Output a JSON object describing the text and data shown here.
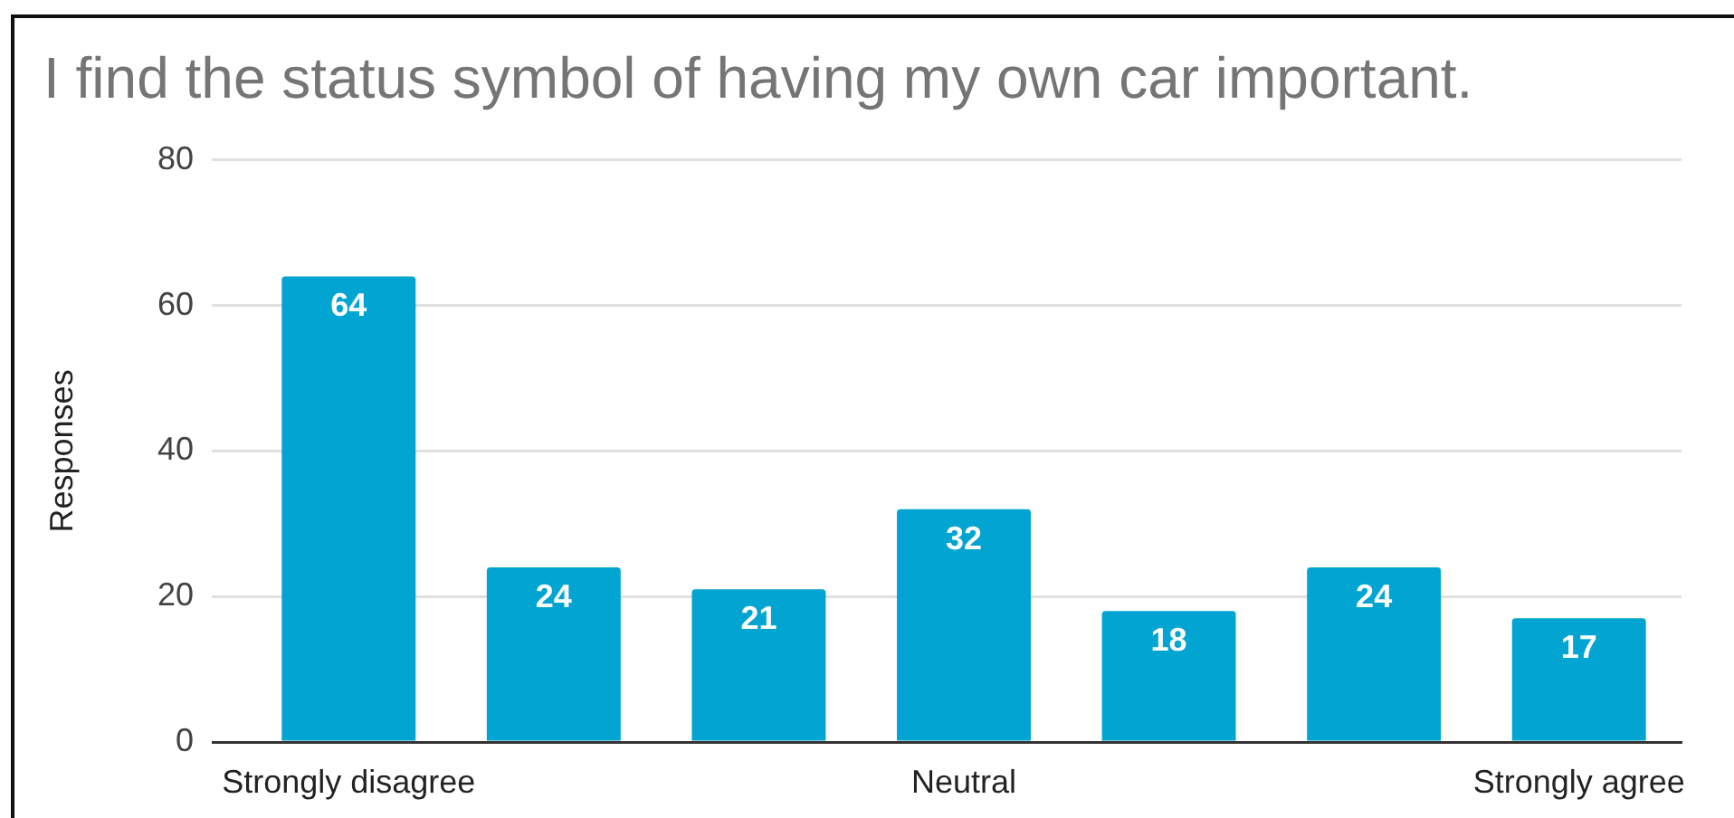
{
  "chart_data": {
    "type": "bar",
    "title": "I find the status symbol of having my own car important.",
    "ylabel": "Responses",
    "categories": [
      "Strongly disagree",
      null,
      null,
      "Neutral",
      null,
      null,
      "Strongly agree"
    ],
    "values": [
      64,
      24,
      21,
      32,
      18,
      24,
      17
    ],
    "color": "#02a5d1",
    "ylim": [
      0,
      80
    ],
    "yticks": [
      0,
      20,
      40,
      60,
      80
    ],
    "grid": "y",
    "data_labels": true
  }
}
